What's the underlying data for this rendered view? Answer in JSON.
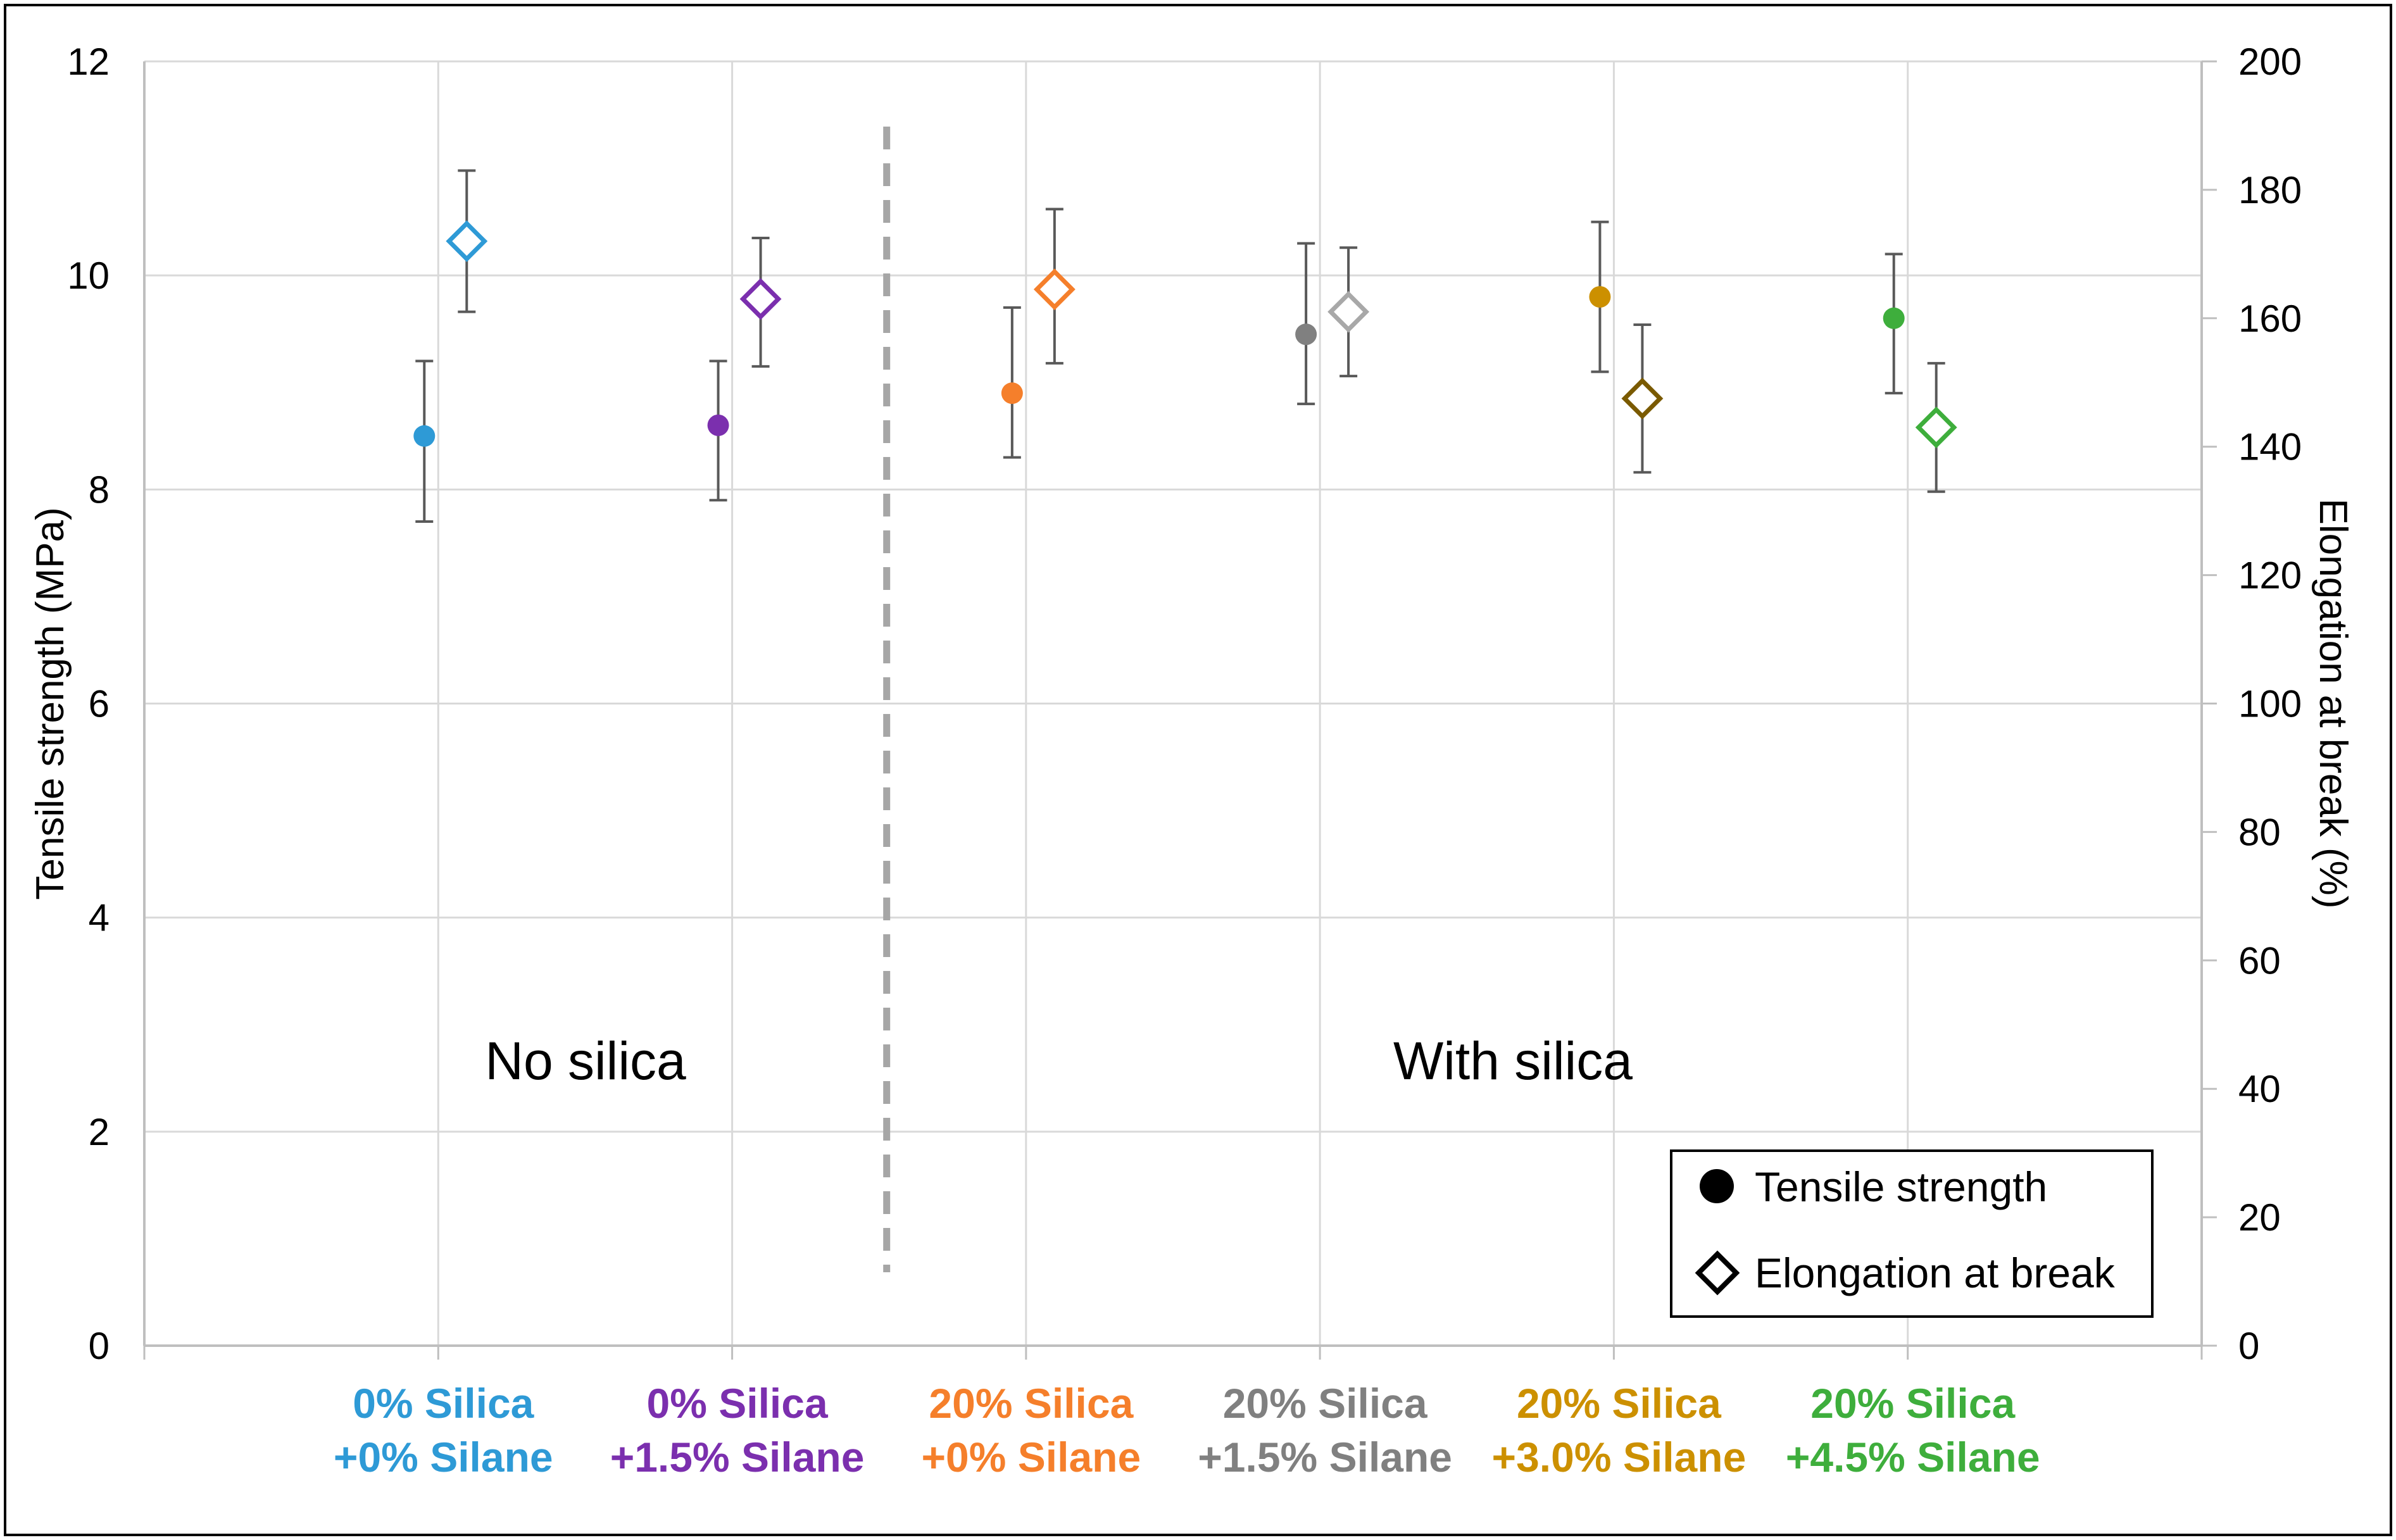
{
  "chart_data": {
    "type": "scatter",
    "title": "",
    "categories": [
      {
        "line1": "0% Silica",
        "line2": "+0% Silane",
        "color": "#2e9ad6"
      },
      {
        "line1": "0% Silica",
        "line2": "+1.5% Silane",
        "color": "#7b2fae"
      },
      {
        "line1": "20% Silica",
        "line2": "+0% Silane",
        "color": "#f57f2b"
      },
      {
        "line1": "20% Silica",
        "line2": "+1.5% Silane",
        "color": "#808080"
      },
      {
        "line1": "20% Silica",
        "line2": "+3.0% Silane",
        "color": "#cc9000"
      },
      {
        "line1": "20% Silica",
        "line2": "+4.5% Silane",
        "color": "#3eae3c"
      }
    ],
    "elongation_colors": [
      "#2e9ad6",
      "#7b2fae",
      "#f57f2b",
      "#a8a8a8",
      "#7a5a00",
      "#3eae3c"
    ],
    "series": [
      {
        "name": "Tensile strength",
        "axis": "left",
        "marker": "circle",
        "values": [
          8.5,
          8.6,
          8.9,
          9.45,
          9.8,
          9.6
        ],
        "err_low": [
          7.7,
          7.9,
          8.3,
          8.8,
          9.1,
          8.9
        ],
        "err_high": [
          9.2,
          9.2,
          9.7,
          10.3,
          10.5,
          10.2
        ]
      },
      {
        "name": "Elongation at break",
        "axis": "right",
        "marker": "diamond",
        "values": [
          172,
          163,
          164.5,
          161,
          147.5,
          143
        ],
        "err_low": [
          161,
          152.5,
          153,
          151,
          136,
          133
        ],
        "err_high": [
          183,
          172.5,
          177,
          171,
          159,
          153
        ]
      }
    ],
    "ylabel_left": "Tensile strength (MPa)",
    "ylabel_right": "Elongation at break (%)",
    "ylim_left": [
      0,
      12
    ],
    "ylim_right": [
      0,
      200
    ],
    "yticks_left": [
      "0",
      "2",
      "4",
      "6",
      "8",
      "10",
      "12"
    ],
    "yticks_right": [
      "0",
      "20",
      "40",
      "60",
      "80",
      "100",
      "120",
      "140",
      "160",
      "180",
      "200"
    ],
    "grid": true,
    "divider_after_category": 2,
    "region_labels": [
      "No silica",
      "With silica"
    ],
    "legend": {
      "position": "bottom-right",
      "entries": [
        {
          "label": "Tensile strength",
          "marker": "circle"
        },
        {
          "label": "Elongation at break",
          "marker": "diamond"
        }
      ]
    }
  }
}
